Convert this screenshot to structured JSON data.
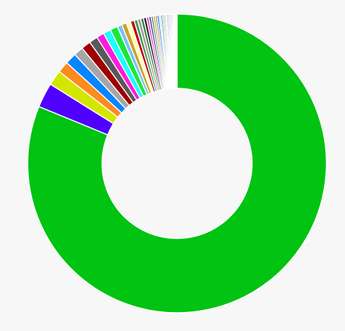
{
  "chart_data": {
    "type": "pie",
    "variant": "donut",
    "title": "",
    "legend": "none",
    "labels_shown": false,
    "start_angle_deg": 0,
    "direction": "clockwise",
    "slices": [
      {
        "value": 79.0,
        "color": "#00c312"
      },
      {
        "value": 2.6,
        "color": "#4f00ff"
      },
      {
        "value": 1.6,
        "color": "#d4e600"
      },
      {
        "value": 1.2,
        "color": "#ff8a1e"
      },
      {
        "value": 1.2,
        "color": "#0a84ff"
      },
      {
        "value": 1.0,
        "color": "#a6a6a6"
      },
      {
        "value": 1.0,
        "color": "#9e0000"
      },
      {
        "value": 0.9,
        "color": "#595959"
      },
      {
        "value": 0.8,
        "color": "#ff1adc"
      },
      {
        "value": 0.8,
        "color": "#1affff"
      },
      {
        "value": 0.8,
        "color": "#18e83a"
      },
      {
        "value": 0.5,
        "color": "#7fbfff"
      },
      {
        "value": 0.5,
        "color": "#c8a52a"
      },
      {
        "value": 0.45,
        "color": "#ffffb0"
      },
      {
        "value": 0.4,
        "color": "#c6001a"
      },
      {
        "value": 0.35,
        "color": "#3aa04a"
      },
      {
        "value": 0.35,
        "color": "#a0a0a0"
      },
      {
        "value": 0.3,
        "color": "#3c7a3c"
      },
      {
        "value": 0.3,
        "color": "#2a2a2a"
      },
      {
        "value": 0.25,
        "color": "#d64ab0"
      },
      {
        "value": 0.25,
        "color": "#6a3ab8"
      },
      {
        "value": 0.22,
        "color": "#18a058"
      },
      {
        "value": 0.22,
        "color": "#e0a030"
      },
      {
        "value": 0.2,
        "color": "#808080"
      },
      {
        "value": 0.2,
        "color": "#1a6ec8"
      },
      {
        "value": 0.18,
        "color": "#b8d0e8"
      },
      {
        "value": 0.18,
        "color": "#00a0a0"
      },
      {
        "value": 0.16,
        "color": "#ff5a5a"
      },
      {
        "value": 0.16,
        "color": "#58c878"
      },
      {
        "value": 0.15,
        "color": "#c8c8c8"
      },
      {
        "value": 0.15,
        "color": "#8a4ad8"
      },
      {
        "value": 0.14,
        "color": "#20c0e0"
      },
      {
        "value": 0.14,
        "color": "#e040a0"
      },
      {
        "value": 0.13,
        "color": "#30b060"
      },
      {
        "value": 0.13,
        "color": "#f0c040"
      },
      {
        "value": 0.12,
        "color": "#606060"
      },
      {
        "value": 0.12,
        "color": "#ff80c0"
      },
      {
        "value": 0.12,
        "color": "#40d0a0"
      }
    ]
  }
}
